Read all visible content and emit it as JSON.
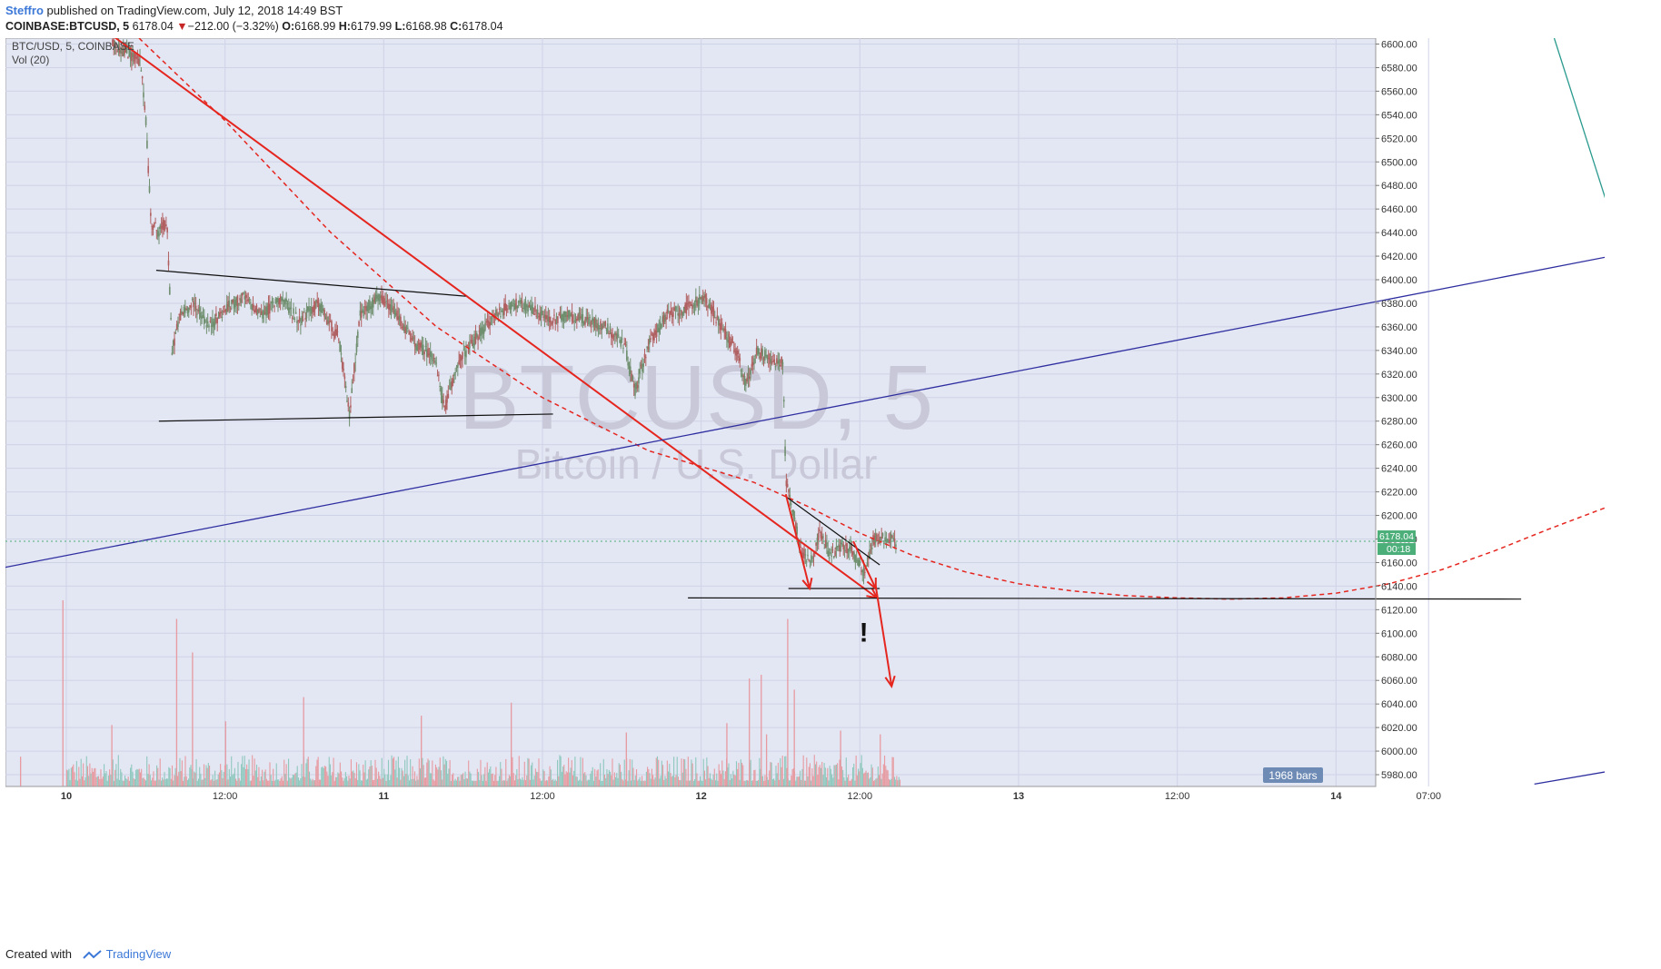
{
  "header": {
    "author": "Steffro",
    "published": "published on TradingView.com, July 12, 2018 14:49 BST"
  },
  "ohlc": {
    "symbol": "COINBASE:BTCUSD, 5",
    "last": "6178.04",
    "change_arrow": "▼",
    "change": "−212.00 (−3.32%)",
    "o_label": "O:",
    "o": "6168.99",
    "h_label": "H:",
    "h": "6179.99",
    "l_label": "L:",
    "l": "6168.98",
    "c_label": "C:",
    "c": "6178.04"
  },
  "legend": {
    "line1": "BTC/USD, 5, COINBASE",
    "line2": "Vol (20)"
  },
  "watermark": {
    "symbol": "BTCUSD, 5",
    "name": "Bitcoin / U.S. Dollar"
  },
  "price_tag": {
    "value": "6178.04",
    "countdown": "00:18"
  },
  "bars_badge": "1968 bars",
  "annotation_mark": "!",
  "footer": {
    "created_with": "Created with",
    "brand": "TradingView"
  },
  "colors": {
    "background": "#e3e6f3",
    "grid": "#cfd3e6",
    "trend_red": "#e5261f",
    "channel_blue": "#2e2ea0",
    "teal_line": "#2a9a8e",
    "candle_up": "#6f8f6f",
    "candle_down": "#b06060",
    "vol_up": "#8ec8bd",
    "vol_down": "#e79aa0",
    "price_tag": "#4caf7a",
    "bars_badge": "#6e8bb5"
  },
  "chart_data": {
    "type": "candlestick",
    "symbol": "BTC/USD",
    "interval": "5",
    "exchange": "COINBASE",
    "y_axis": {
      "min": 5970,
      "max": 6605,
      "ticks": [
        5980,
        6000,
        6020,
        6040,
        6060,
        6080,
        6100,
        6120,
        6140,
        6160,
        6180,
        6200,
        6220,
        6240,
        6260,
        6280,
        6300,
        6320,
        6340,
        6360,
        6380,
        6400,
        6420,
        6440,
        6460,
        6480,
        6500,
        6520,
        6540,
        6560,
        6580,
        6600
      ],
      "tick_labels": [
        "5980.00",
        "6000.00",
        "6020.00",
        "6040.00",
        "6060.00",
        "6080.00",
        "6100.00",
        "6120.00",
        "6140.00",
        "6160.00",
        "6180.00",
        "6200.00",
        "6220.00",
        "6240.00",
        "6260.00",
        "6280.00",
        "6300.00",
        "6320.00",
        "6340.00",
        "6360.00",
        "6380.00",
        "6400.00",
        "6420.00",
        "6440.00",
        "6460.00",
        "6480.00",
        "6500.00",
        "6520.00",
        "6540.00",
        "6560.00",
        "6580.00",
        "6600.00"
      ]
    },
    "x_axis": {
      "unit": "hours since Jul 10 00:00",
      "min": -4.6,
      "max": 99.0,
      "ticks": [
        0,
        12,
        24,
        36,
        48,
        60,
        72,
        84,
        96
      ],
      "tick_labels": [
        "10",
        "12:00",
        "11",
        "12:00",
        "12",
        "12:00",
        "13",
        "12:00",
        "14",
        "07:00"
      ],
      "tick_positions": [
        0,
        12,
        24,
        36,
        48,
        60,
        72,
        84,
        96,
        103
      ]
    },
    "price_path": [
      [
        3.5,
        6600
      ],
      [
        4.2,
        6595
      ],
      [
        5.0,
        6590
      ],
      [
        5.6,
        6585
      ],
      [
        6.0,
        6540
      ],
      [
        6.4,
        6450
      ],
      [
        7.0,
        6440
      ],
      [
        7.6,
        6450
      ],
      [
        8.0,
        6340
      ],
      [
        8.6,
        6370
      ],
      [
        9.6,
        6380
      ],
      [
        10.8,
        6360
      ],
      [
        12.0,
        6375
      ],
      [
        13.4,
        6385
      ],
      [
        14.8,
        6370
      ],
      [
        16.2,
        6385
      ],
      [
        17.6,
        6365
      ],
      [
        19.0,
        6380
      ],
      [
        20.6,
        6350
      ],
      [
        21.4,
        6285
      ],
      [
        22.2,
        6370
      ],
      [
        23.6,
        6385
      ],
      [
        25.0,
        6370
      ],
      [
        26.4,
        6345
      ],
      [
        27.8,
        6335
      ],
      [
        28.6,
        6290
      ],
      [
        29.6,
        6330
      ],
      [
        31.0,
        6350
      ],
      [
        32.4,
        6370
      ],
      [
        33.8,
        6380
      ],
      [
        35.2,
        6375
      ],
      [
        36.6,
        6365
      ],
      [
        38.0,
        6370
      ],
      [
        39.4,
        6365
      ],
      [
        40.8,
        6360
      ],
      [
        42.2,
        6345
      ],
      [
        43.0,
        6305
      ],
      [
        44.0,
        6345
      ],
      [
        45.4,
        6370
      ],
      [
        46.8,
        6375
      ],
      [
        48.2,
        6385
      ],
      [
        49.6,
        6360
      ],
      [
        50.8,
        6335
      ],
      [
        51.4,
        6310
      ],
      [
        52.2,
        6340
      ],
      [
        53.6,
        6330
      ],
      [
        54.2,
        6330
      ],
      [
        54.4,
        6230
      ],
      [
        55.0,
        6200
      ],
      [
        55.6,
        6170
      ],
      [
        56.2,
        6160
      ],
      [
        57.0,
        6185
      ],
      [
        57.8,
        6165
      ],
      [
        58.6,
        6175
      ],
      [
        59.4,
        6170
      ],
      [
        60.4,
        6150
      ],
      [
        61.0,
        6180
      ],
      [
        62.2,
        6180
      ],
      [
        62.8,
        6178
      ]
    ],
    "price_ticks": {
      "start": 3.5,
      "end": 62.8,
      "sample": [
        [
          3.5,
          6602
        ],
        [
          4.6,
          6570
        ],
        [
          5.5,
          6588
        ],
        [
          6.6,
          6460
        ],
        [
          7.3,
          6455
        ],
        [
          8.2,
          6330
        ],
        [
          10.0,
          6390
        ],
        [
          11.5,
          6360
        ],
        [
          13.0,
          6390
        ],
        [
          14.5,
          6405
        ],
        [
          16.0,
          6372
        ],
        [
          17.5,
          6395
        ],
        [
          18.8,
          6388
        ],
        [
          20.4,
          6356
        ],
        [
          21.6,
          6282
        ],
        [
          22.6,
          6368
        ],
        [
          24.0,
          6398
        ],
        [
          25.8,
          6366
        ],
        [
          27.2,
          6340
        ],
        [
          28.4,
          6284
        ],
        [
          29.8,
          6336
        ],
        [
          31.5,
          6360
        ],
        [
          32.8,
          6396
        ],
        [
          34.4,
          6382
        ],
        [
          35.8,
          6368
        ],
        [
          37.3,
          6374
        ],
        [
          38.8,
          6360
        ],
        [
          40.2,
          6368
        ],
        [
          41.6,
          6348
        ],
        [
          42.9,
          6290
        ],
        [
          44.4,
          6352
        ],
        [
          45.9,
          6372
        ],
        [
          47.3,
          6385
        ],
        [
          48.8,
          6389
        ],
        [
          50.2,
          6362
        ],
        [
          51.1,
          6318
        ],
        [
          52.6,
          6342
        ],
        [
          54.1,
          6330
        ],
        [
          54.6,
          6236
        ],
        [
          55.6,
          6170
        ],
        [
          56.8,
          6190
        ],
        [
          58.0,
          6160
        ],
        [
          59.0,
          6182
        ],
        [
          60.0,
          6146
        ],
        [
          61.6,
          6184
        ],
        [
          62.8,
          6178
        ]
      ]
    },
    "volume": {
      "start": 0,
      "end": 63,
      "spikes": [
        [
          -0.3,
          1.0
        ],
        [
          8.3,
          0.9
        ],
        [
          9.5,
          0.72
        ],
        [
          17.9,
          0.48
        ],
        [
          12.0,
          0.35
        ],
        [
          26.8,
          0.38
        ],
        [
          55.0,
          0.52
        ],
        [
          54.5,
          0.9
        ],
        [
          51.6,
          0.58
        ],
        [
          52.5,
          0.6
        ],
        [
          49.9,
          0.34
        ],
        [
          33.6,
          0.45
        ],
        [
          42.3,
          0.29
        ],
        [
          -3.5,
          0.16
        ],
        [
          3.4,
          0.33
        ],
        [
          58.5,
          0.3
        ],
        [
          61.5,
          0.28
        ],
        [
          52.9,
          0.28
        ]
      ]
    },
    "drawings": [
      {
        "kind": "line",
        "style": "solid",
        "color": "red",
        "from": [
          3.5,
          6607
        ],
        "to": [
          61.3,
          6130
        ],
        "arrow": true
      },
      {
        "kind": "curve",
        "style": "dashed",
        "color": "red",
        "points": [
          [
            5.5,
            6605
          ],
          [
            12,
            6535
          ],
          [
            20,
            6440
          ],
          [
            28,
            6360
          ],
          [
            36,
            6300
          ],
          [
            44,
            6255
          ],
          [
            52,
            6228
          ],
          [
            56,
            6208
          ],
          [
            60,
            6185
          ],
          [
            64,
            6166
          ],
          [
            68,
            6152
          ],
          [
            72,
            6142
          ],
          [
            76,
            6136
          ],
          [
            80,
            6132
          ],
          [
            84,
            6130
          ],
          [
            88,
            6129
          ],
          [
            92,
            6130
          ],
          [
            96,
            6134
          ],
          [
            100,
            6142
          ],
          [
            104,
            6154
          ],
          [
            108,
            6170
          ],
          [
            112,
            6188
          ],
          [
            116,
            6205
          ],
          [
            119,
            6218
          ]
        ]
      },
      {
        "kind": "line",
        "style": "solid",
        "color": "black",
        "from": [
          6.8,
          6408
        ],
        "to": [
          30.2,
          6386
        ]
      },
      {
        "kind": "line",
        "style": "solid",
        "color": "black",
        "from": [
          7.0,
          6280
        ],
        "to": [
          36.8,
          6286
        ]
      },
      {
        "kind": "line",
        "style": "solid",
        "color": "black",
        "from": [
          54.4,
          6216
        ],
        "to": [
          61.5,
          6158
        ]
      },
      {
        "kind": "line",
        "style": "solid",
        "color": "black",
        "from": [
          54.6,
          6138
        ],
        "to": [
          61.5,
          6138
        ]
      },
      {
        "kind": "line",
        "style": "solid",
        "color": "black",
        "from": [
          47.0,
          6130
        ],
        "to": [
          110.0,
          6129
        ]
      },
      {
        "kind": "line",
        "style": "solid",
        "color": "blue",
        "from": [
          -4.6,
          6156
        ],
        "to": [
          117.7,
          6422
        ]
      },
      {
        "kind": "line",
        "style": "solid",
        "color": "blue",
        "from": [
          111.0,
          5972
        ],
        "to": [
          117.7,
          5985
        ]
      },
      {
        "kind": "line",
        "style": "solid",
        "color": "teal",
        "from": [
          112.5,
          6605
        ],
        "to": [
          117.7,
          6422
        ]
      },
      {
        "kind": "arrow",
        "style": "solid",
        "color": "red",
        "from": [
          54.4,
          6218
        ],
        "to": [
          56.2,
          6138
        ]
      },
      {
        "kind": "arrow",
        "style": "solid",
        "color": "red",
        "from": [
          59.5,
          6178
        ],
        "to": [
          61.2,
          6138
        ]
      },
      {
        "kind": "arrow",
        "style": "solid",
        "color": "red",
        "from": [
          61.2,
          6140
        ],
        "to": [
          62.4,
          6055
        ]
      }
    ],
    "last_price": 6178.04
  }
}
